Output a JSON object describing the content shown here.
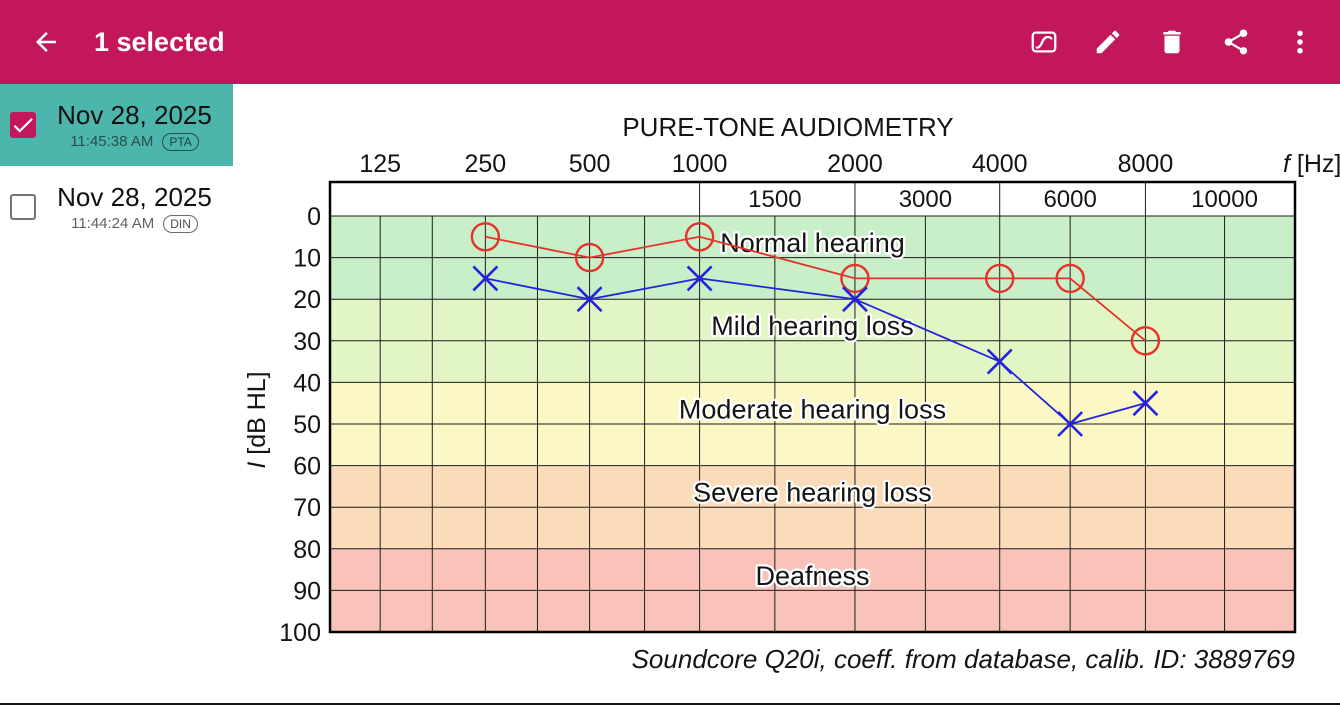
{
  "app_bar": {
    "title": "1 selected",
    "color": "#c2185b",
    "icons": {
      "left": "back-arrow",
      "actions": [
        "audiogram",
        "edit",
        "delete",
        "share",
        "overflow-menu"
      ]
    }
  },
  "sidebar": {
    "selected_color": "#4cb6ac",
    "items": [
      {
        "date": "Nov 28, 2025",
        "time": "11:45:38 AM",
        "badge": "PTA",
        "selected": true,
        "checked": true
      },
      {
        "date": "Nov 28, 2025",
        "time": "11:44:24 AM",
        "badge": "DIN",
        "selected": false,
        "checked": false
      }
    ]
  },
  "chart_data": {
    "type": "line",
    "title": "PURE-TONE AUDIOMETRY",
    "xlabel_italic": "f",
    "xlabel_rest": " [Hz]",
    "ylabel_italic": "I",
    "ylabel_rest": " [dB HL]",
    "x_octave_labels": [
      125,
      250,
      500,
      1000,
      2000,
      4000,
      8000
    ],
    "x_interoctave_labels": [
      1500,
      3000,
      6000,
      10000
    ],
    "y_ticks": [
      0,
      10,
      20,
      30,
      40,
      50,
      60,
      70,
      80,
      90,
      100
    ],
    "ylim": [
      0,
      100
    ],
    "grid": true,
    "legend": "none",
    "bands": [
      {
        "label": "Normal hearing",
        "from": 0,
        "to": 20,
        "color": "#c9efc8"
      },
      {
        "label": "Mild hearing loss",
        "from": 20,
        "to": 40,
        "color": "#e2f5c5"
      },
      {
        "label": "Moderate hearing loss",
        "from": 40,
        "to": 60,
        "color": "#fcf8c5"
      },
      {
        "label": "Severe hearing loss",
        "from": 60,
        "to": 80,
        "color": "#fbdcba"
      },
      {
        "label": "Deafness",
        "from": 80,
        "to": 100,
        "color": "#f9c3ba"
      }
    ],
    "series": [
      {
        "name": "right-ear-circles",
        "marker": "circle",
        "color": "#e5322a",
        "points": [
          [
            250,
            5
          ],
          [
            500,
            10
          ],
          [
            1000,
            5
          ],
          [
            2000,
            15
          ],
          [
            4000,
            15
          ],
          [
            6000,
            15
          ],
          [
            8000,
            30
          ]
        ]
      },
      {
        "name": "left-ear-crosses",
        "marker": "x",
        "color": "#2323dd",
        "points": [
          [
            250,
            15
          ],
          [
            500,
            20
          ],
          [
            1000,
            15
          ],
          [
            2000,
            20
          ],
          [
            4000,
            35
          ],
          [
            6000,
            50
          ],
          [
            8000,
            45
          ]
        ]
      }
    ],
    "caption": "Soundcore Q20i, coeff. from database, calib. ID: 3889769"
  }
}
